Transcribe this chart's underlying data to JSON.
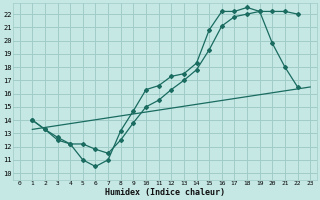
{
  "xlabel": "Humidex (Indice chaleur)",
  "xlim": [
    -0.5,
    23.5
  ],
  "ylim": [
    9.5,
    22.8
  ],
  "xticks": [
    0,
    1,
    2,
    3,
    4,
    5,
    6,
    7,
    8,
    9,
    10,
    11,
    12,
    13,
    14,
    15,
    16,
    17,
    18,
    19,
    20,
    21,
    22,
    23
  ],
  "yticks": [
    10,
    11,
    12,
    13,
    14,
    15,
    16,
    17,
    18,
    19,
    20,
    21,
    22
  ],
  "bg_color": "#c5e8e5",
  "grid_color": "#a0ccc8",
  "line_color": "#1a6b60",
  "curve1_x": [
    1,
    2,
    3,
    4,
    5,
    6,
    7,
    8,
    9,
    10,
    11,
    12,
    13,
    14,
    15,
    16,
    17,
    18,
    19,
    20,
    21,
    22
  ],
  "curve1_y": [
    14.0,
    13.3,
    12.7,
    12.2,
    11.0,
    10.5,
    11.0,
    13.2,
    14.7,
    16.3,
    16.6,
    17.3,
    17.5,
    18.3,
    20.8,
    22.2,
    22.2,
    22.5,
    22.2,
    19.8,
    18.0,
    16.5
  ],
  "curve2_x": [
    1,
    2,
    3,
    4,
    5,
    6,
    7,
    8,
    9,
    10,
    11,
    12,
    13,
    14,
    15,
    16,
    17,
    18,
    19,
    20,
    21,
    22
  ],
  "curve2_y": [
    14.0,
    13.3,
    12.5,
    12.2,
    12.2,
    11.8,
    11.5,
    12.5,
    13.8,
    15.0,
    15.5,
    16.3,
    17.0,
    17.8,
    19.3,
    21.1,
    21.8,
    22.0,
    22.2,
    22.2,
    22.2,
    22.0
  ],
  "curve3_x": [
    1,
    23
  ],
  "curve3_y": [
    13.3,
    16.5
  ]
}
